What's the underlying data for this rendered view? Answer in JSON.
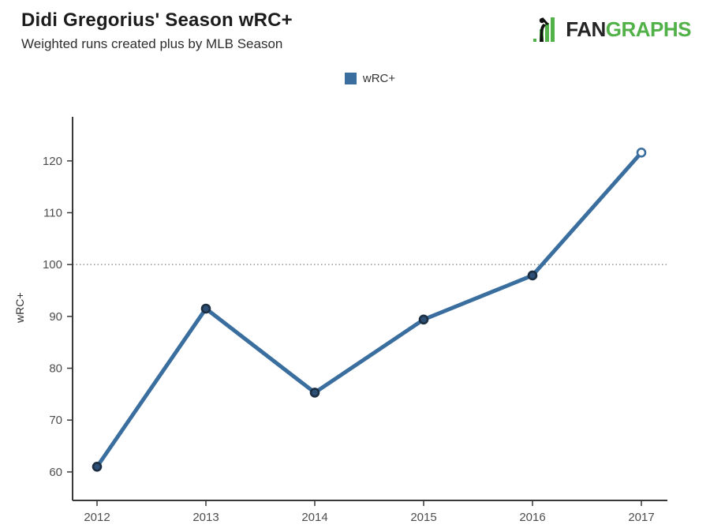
{
  "header": {
    "title": "Didi Gregorius' Season wRC+",
    "subtitle": "Weighted runs created plus by MLB Season"
  },
  "logo": {
    "text_dark": "FAN",
    "text_green": "GRAPHS",
    "green_color": "#52b148",
    "dark_color": "#252525"
  },
  "legend": {
    "label": "wRC+",
    "swatch_color": "#3a6e9e"
  },
  "chart_data": {
    "type": "line",
    "title": "Didi Gregorius' Season wRC+",
    "subtitle": "Weighted runs created plus by MLB Season",
    "categories": [
      "2012",
      "2013",
      "2014",
      "2015",
      "2016",
      "2017"
    ],
    "series": [
      {
        "name": "wRC+",
        "values": [
          61,
          91.5,
          75.3,
          89.4,
          97.9,
          121.6
        ],
        "color": "#3a6e9e"
      }
    ],
    "xlabel": "",
    "ylabel": "wRC+",
    "yticks": [
      60,
      70,
      80,
      90,
      100,
      110,
      120
    ],
    "ylim": [
      54.5,
      128.5
    ],
    "reference_line": 100,
    "reference_line_color": "#8c8c8c",
    "grid": "reference-line-only",
    "legend_position": "top-center",
    "axis_color": "#383838",
    "tick_label_color": "#4d4d4d",
    "marker": {
      "fill": "#2d4f76",
      "stroke": "#1c2e42",
      "last_point_open": true,
      "open_fill": "#ffffff"
    }
  }
}
